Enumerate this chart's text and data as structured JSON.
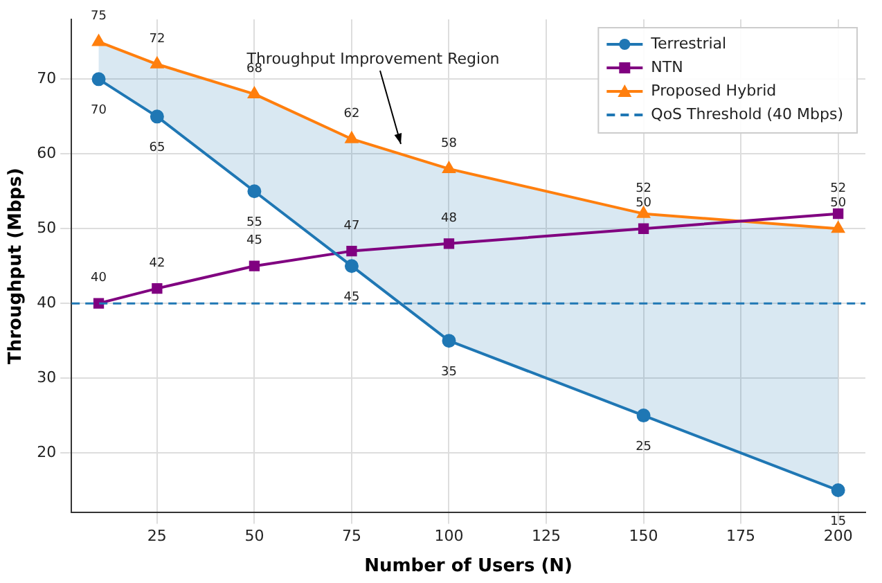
{
  "chart_data": {
    "type": "line",
    "xlabel": "Number of Users (N)",
    "ylabel": "Throughput (Mbps)",
    "x": [
      10,
      25,
      50,
      75,
      100,
      150,
      200
    ],
    "series": [
      {
        "name": "Terrestrial",
        "color": "#1f77b4",
        "marker": "circle",
        "values": [
          70,
          65,
          55,
          45,
          35,
          25,
          15
        ]
      },
      {
        "name": "NTN",
        "color": "#800080",
        "marker": "square",
        "values": [
          40,
          42,
          45,
          47,
          48,
          50,
          52
        ]
      },
      {
        "name": "Proposed Hybrid",
        "color": "#ff7f0e",
        "marker": "triangle",
        "values": [
          75,
          72,
          68,
          62,
          58,
          52,
          50
        ],
        "lower": [
          70,
          65,
          55,
          45,
          35,
          25,
          15
        ],
        "upper": [
          75,
          72,
          68,
          62,
          58,
          52,
          50
        ]
      }
    ],
    "xlim": [
      3,
      207
    ],
    "xticks": [
      25,
      50,
      75,
      100,
      125,
      150,
      175,
      200
    ],
    "ylim": [
      12,
      78
    ],
    "yticks": [
      20,
      30,
      40,
      50,
      60,
      70
    ],
    "ref_lines": [
      {
        "axis": "y",
        "value": 40,
        "label": "QoS Threshold (40 Mbps)",
        "color": "#1f77b4",
        "line_style": "dashed"
      }
    ],
    "annotations": [
      "Throughput Improvement Region"
    ],
    "data_labels": true,
    "grid": true,
    "legend": "top right",
    "line_style": "solid"
  }
}
